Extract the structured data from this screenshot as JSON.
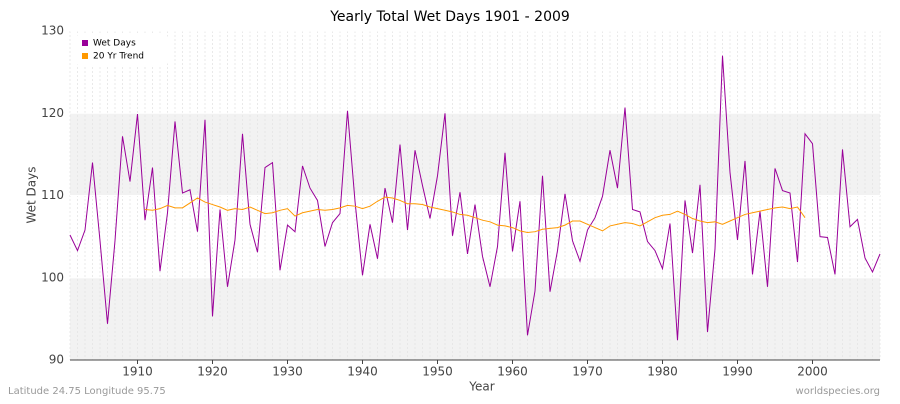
{
  "chart_data": {
    "type": "line",
    "title": "Yearly Total Wet Days 1901 - 2009",
    "xlabel": "Year",
    "ylabel": "Wet Days",
    "footer_left": "Latitude 24.75 Longitude 95.75",
    "footer_right": "worldspecies.org",
    "legend": "top-left",
    "grid": true,
    "xlim": [
      1901,
      2009
    ],
    "xticks": [
      1910,
      1920,
      1930,
      1940,
      1950,
      1960,
      1970,
      1980,
      1990,
      2000
    ],
    "ylim": [
      90,
      130
    ],
    "yticks": [
      90,
      100,
      110,
      120,
      130
    ],
    "x": [
      1901,
      1902,
      1903,
      1904,
      1905,
      1906,
      1907,
      1908,
      1909,
      1910,
      1911,
      1912,
      1913,
      1914,
      1915,
      1916,
      1917,
      1918,
      1919,
      1920,
      1921,
      1922,
      1923,
      1924,
      1925,
      1926,
      1927,
      1928,
      1929,
      1930,
      1931,
      1932,
      1933,
      1934,
      1935,
      1936,
      1937,
      1938,
      1939,
      1940,
      1941,
      1942,
      1943,
      1944,
      1945,
      1946,
      1947,
      1948,
      1949,
      1950,
      1951,
      1952,
      1953,
      1954,
      1955,
      1956,
      1957,
      1958,
      1959,
      1960,
      1961,
      1962,
      1963,
      1964,
      1965,
      1966,
      1967,
      1968,
      1969,
      1970,
      1971,
      1972,
      1973,
      1974,
      1975,
      1976,
      1977,
      1978,
      1979,
      1980,
      1981,
      1982,
      1983,
      1984,
      1985,
      1986,
      1987,
      1988,
      1989,
      1990,
      1991,
      1992,
      1993,
      1994,
      1995,
      1996,
      1997,
      1998,
      1999,
      2000,
      2001,
      2002,
      2003,
      2004,
      2005,
      2006,
      2007,
      2008,
      2009
    ],
    "series": [
      {
        "name": "Wet Days",
        "color": "#990099",
        "values": [
          105.2,
          103.3,
          105.8,
          114,
          104.5,
          94.4,
          104.5,
          117.2,
          111.7,
          119.9,
          107,
          113.4,
          100.8,
          107.9,
          119,
          110.3,
          110.7,
          105.6,
          119.2,
          95.3,
          108.3,
          98.9,
          104.6,
          117.5,
          106.5,
          103.1,
          113.4,
          114,
          100.9,
          106.4,
          105.6,
          113.6,
          110.9,
          109.4,
          103.8,
          106.7,
          107.8,
          120.3,
          109.3,
          100.3,
          106.5,
          102.3,
          110.9,
          106.7,
          116.2,
          105.8,
          115.5,
          111.2,
          107.2,
          112.4,
          120,
          105.1,
          110.4,
          102.9,
          108.9,
          102.6,
          98.9,
          103.8,
          115.2,
          103.2,
          109.3,
          93,
          98.4,
          112.4,
          98.3,
          103.3,
          110.2,
          104.5,
          102,
          105.8,
          107.3,
          109.9,
          115.5,
          110.9,
          120.7,
          108.3,
          108,
          104.4,
          103.3,
          101.1,
          106.6,
          92.4,
          109.4,
          103,
          111.3,
          93.4,
          103.5,
          127,
          112.8,
          104.6,
          114.2,
          100.4,
          108.1,
          98.9,
          113.3,
          110.6,
          110.3,
          101.9,
          117.5,
          116.3,
          105,
          104.9,
          100.4,
          115.6,
          106.2,
          107.1,
          102.4,
          100.7,
          102.9
        ]
      },
      {
        "name": "20 Yr Trend",
        "color": "#ff9900",
        "values": [
          null,
          null,
          null,
          null,
          null,
          null,
          null,
          null,
          null,
          null,
          108.3,
          108.2,
          108.4,
          108.8,
          108.5,
          108.5,
          109.1,
          109.7,
          109.2,
          108.9,
          108.6,
          108.2,
          108.4,
          108.3,
          108.6,
          108.2,
          107.8,
          107.9,
          108.2,
          108.4,
          107.5,
          107.9,
          108.1,
          108.3,
          108.2,
          108.3,
          108.5,
          108.8,
          108.7,
          108.4,
          108.7,
          109.3,
          109.8,
          109.7,
          109.4,
          109.0,
          109.0,
          108.9,
          108.6,
          108.4,
          108.2,
          108.0,
          107.7,
          107.6,
          107.3,
          107.0,
          106.8,
          106.4,
          106.3,
          106.1,
          105.7,
          105.5,
          105.6,
          105.9,
          106.0,
          106.1,
          106.4,
          106.9,
          106.9,
          106.5,
          106.1,
          105.7,
          106.3,
          106.5,
          106.7,
          106.6,
          106.3,
          106.8,
          107.3,
          107.6,
          107.7,
          108.1,
          107.7,
          107.2,
          106.9,
          106.7,
          106.8,
          106.5,
          106.9,
          107.3,
          107.7,
          107.9,
          108.1,
          108.3,
          108.5,
          108.6,
          108.4,
          108.6,
          107.3,
          null,
          null,
          null,
          null,
          null,
          null,
          null,
          null,
          null,
          null
        ]
      }
    ]
  }
}
